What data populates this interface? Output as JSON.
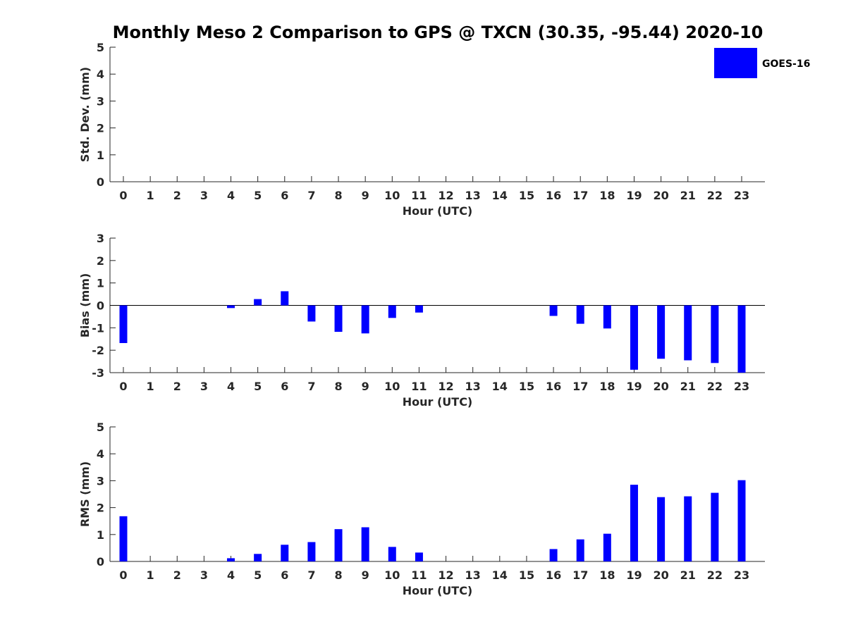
{
  "chart_data": {
    "title": "Monthly Meso 2 Comparison to GPS @ TXCN (30.35, -95.44) 2020-10",
    "legend": {
      "label": "GOES-16",
      "color": "#0000ff",
      "placement": "top-right"
    },
    "bar_color": "#0000ff",
    "panels": [
      {
        "id": "std",
        "type": "bar",
        "ylabel": "Std. Dev. (mm)",
        "xlabel": "Hour (UTC)",
        "ylim": [
          0,
          5
        ],
        "yticks": [
          0,
          1,
          2,
          3,
          4,
          5
        ],
        "categories": [
          0,
          1,
          2,
          3,
          4,
          5,
          6,
          7,
          8,
          9,
          10,
          11,
          12,
          13,
          14,
          15,
          16,
          17,
          18,
          19,
          20,
          21,
          22,
          23
        ],
        "values": [
          null,
          null,
          null,
          null,
          null,
          null,
          null,
          null,
          null,
          null,
          null,
          null,
          null,
          null,
          null,
          null,
          null,
          null,
          null,
          null,
          null,
          null,
          null,
          null
        ]
      },
      {
        "id": "bias",
        "type": "bar",
        "ylabel": "Bias (mm)",
        "xlabel": "Hour (UTC)",
        "ylim": [
          -3,
          3
        ],
        "yticks": [
          -3,
          -2,
          -1,
          0,
          1,
          2,
          3
        ],
        "categories": [
          0,
          1,
          2,
          3,
          4,
          5,
          6,
          7,
          8,
          9,
          10,
          11,
          12,
          13,
          14,
          15,
          16,
          17,
          18,
          19,
          20,
          21,
          22,
          23
        ],
        "values": [
          -1.68,
          null,
          null,
          null,
          -0.12,
          0.28,
          0.63,
          -0.72,
          -1.18,
          -1.25,
          -0.56,
          -0.32,
          null,
          null,
          null,
          null,
          -0.47,
          -0.82,
          -1.03,
          -2.87,
          -2.38,
          -2.45,
          -2.57,
          -3.0
        ]
      },
      {
        "id": "rms",
        "type": "bar",
        "ylabel": "RMS (mm)",
        "xlabel": "Hour (UTC)",
        "ylim": [
          0,
          5
        ],
        "yticks": [
          0,
          1,
          2,
          3,
          4,
          5
        ],
        "categories": [
          0,
          1,
          2,
          3,
          4,
          5,
          6,
          7,
          8,
          9,
          10,
          11,
          12,
          13,
          14,
          15,
          16,
          17,
          18,
          19,
          20,
          21,
          22,
          23
        ],
        "values": [
          1.68,
          null,
          null,
          null,
          0.12,
          0.28,
          0.62,
          0.72,
          1.2,
          1.27,
          0.54,
          0.33,
          null,
          null,
          null,
          null,
          0.46,
          0.82,
          1.03,
          2.85,
          2.39,
          2.42,
          2.55,
          3.02
        ]
      }
    ]
  }
}
